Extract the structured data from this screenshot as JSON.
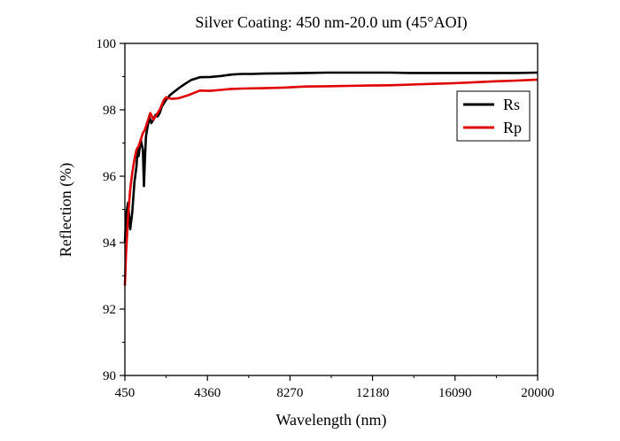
{
  "chart_data": {
    "type": "line",
    "title": "Silver Coating: 450 nm-20.0 um (45°AOI)",
    "xlabel": "Wavelength (nm)",
    "ylabel": "Reflection (%)",
    "xlim": [
      450,
      20000
    ],
    "ylim": [
      90,
      100
    ],
    "x_ticks": [
      450,
      4360,
      8270,
      12180,
      16090,
      20000
    ],
    "y_ticks": [
      90,
      92,
      94,
      96,
      98,
      100
    ],
    "grid": false,
    "legend_position": "top-right",
    "series": [
      {
        "name": "Rs",
        "color": "#000000",
        "x": [
          450,
          520,
          600,
          700,
          800,
          900,
          1000,
          1050,
          1100,
          1200,
          1300,
          1350,
          1400,
          1450,
          1500,
          1560,
          1600,
          1650,
          1700,
          1800,
          1900,
          2000,
          2100,
          2200,
          2300,
          2400,
          2600,
          2800,
          3000,
          3300,
          3600,
          4000,
          4500,
          5000,
          5500,
          6000,
          6500,
          7000,
          8000,
          9000,
          10000,
          11000,
          12000,
          13000,
          14000,
          15000,
          16000,
          17000,
          18000,
          19000,
          20000
        ],
        "y": [
          94.0,
          94.9,
          95.2,
          94.4,
          94.9,
          95.8,
          96.3,
          96.8,
          96.6,
          97.1,
          96.8,
          95.7,
          96.5,
          97.2,
          97.4,
          97.6,
          97.8,
          97.7,
          97.6,
          97.7,
          97.85,
          97.8,
          97.9,
          98.1,
          98.2,
          98.3,
          98.45,
          98.55,
          98.65,
          98.78,
          98.9,
          98.98,
          98.99,
          99.02,
          99.06,
          99.08,
          99.08,
          99.09,
          99.1,
          99.11,
          99.12,
          99.12,
          99.12,
          99.12,
          99.11,
          99.11,
          99.11,
          99.11,
          99.11,
          99.11,
          99.12
        ]
      },
      {
        "name": "Rp",
        "color": "#e00000",
        "x": [
          450,
          500,
          550,
          600,
          700,
          800,
          900,
          1000,
          1100,
          1200,
          1300,
          1400,
          1500,
          1600,
          1650,
          1700,
          1800,
          1900,
          2000,
          2100,
          2200,
          2300,
          2400,
          2500,
          2700,
          3000,
          3500,
          4000,
          4500,
          5000,
          5500,
          6000,
          7000,
          8000,
          9000,
          10000,
          11000,
          12000,
          13000,
          14000,
          15000,
          16000,
          17000,
          18000,
          19000,
          20000
        ],
        "y": [
          92.7,
          93.6,
          94.2,
          94.8,
          95.6,
          96.1,
          96.5,
          96.8,
          96.9,
          97.1,
          97.3,
          97.4,
          97.6,
          97.8,
          97.9,
          97.85,
          97.7,
          97.8,
          97.9,
          98.0,
          98.15,
          98.3,
          98.38,
          98.35,
          98.33,
          98.35,
          98.45,
          98.58,
          98.57,
          98.6,
          98.63,
          98.64,
          98.65,
          98.67,
          98.7,
          98.71,
          98.72,
          98.73,
          98.74,
          98.76,
          98.78,
          98.8,
          98.83,
          98.86,
          98.88,
          98.91
        ]
      }
    ]
  }
}
